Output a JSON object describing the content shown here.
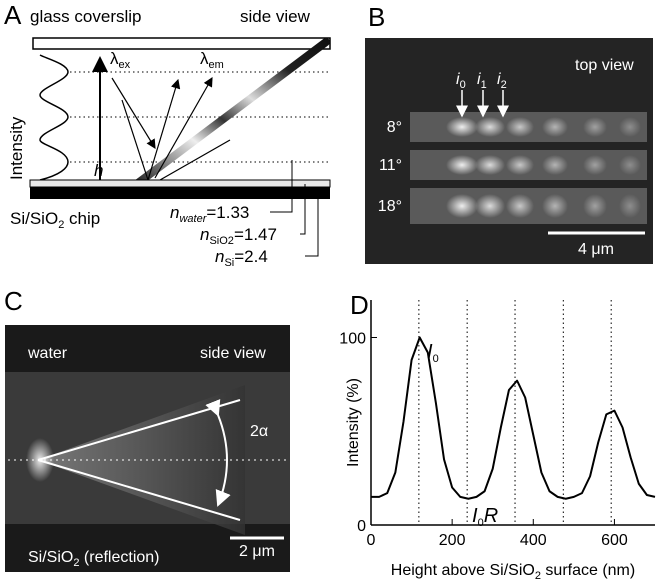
{
  "panel_a": {
    "label": "A",
    "coverslip": "glass coverslip",
    "view": "side view",
    "lambda_ex": [
      "λ",
      "ex"
    ],
    "lambda_em": [
      "λ",
      "em"
    ],
    "axis": "Intensity",
    "h": "h",
    "chip": [
      "Si/SiO",
      "2",
      " chip"
    ],
    "n_water": [
      "n",
      "water",
      "=1.33"
    ],
    "n_sio2": [
      "n",
      "SiO2",
      "=1.47"
    ],
    "n_si": [
      "n",
      "Si",
      "=2.4"
    ]
  },
  "panel_b": {
    "label": "B",
    "view": "top view",
    "peaks": [
      [
        "i",
        "0"
      ],
      [
        "i",
        "1"
      ],
      [
        "i",
        "2"
      ]
    ],
    "angles": [
      "8°",
      "11°",
      "18°"
    ],
    "scale": "4 μm"
  },
  "panel_c": {
    "label": "C",
    "medium": "water",
    "view": "side view",
    "angle": "2α",
    "scale": "2 μm",
    "substrate": [
      "Si/SiO",
      "2",
      " (reflection)"
    ]
  },
  "chart_data": {
    "type": "line",
    "panel_label": "D",
    "x": [
      0,
      20,
      40,
      60,
      80,
      100,
      120,
      140,
      160,
      180,
      200,
      220,
      240,
      260,
      280,
      300,
      320,
      340,
      360,
      380,
      400,
      420,
      440,
      460,
      480,
      500,
      520,
      540,
      560,
      580,
      600,
      620,
      640,
      660,
      680,
      700
    ],
    "series": [
      {
        "color": "#000000",
        "values": [
          15,
          15,
          17,
          28,
          55,
          88,
          100,
          92,
          65,
          35,
          20,
          15,
          14,
          15,
          18,
          30,
          52,
          72,
          77,
          68,
          48,
          28,
          18,
          15,
          14,
          15,
          17,
          26,
          44,
          59,
          61,
          52,
          36,
          22,
          16,
          15
        ]
      }
    ],
    "xlim": [
      0,
      700
    ],
    "xticks": [
      0,
      200,
      400,
      600
    ],
    "ylim": [
      0,
      120
    ],
    "yticks": [
      0,
      100
    ],
    "vlines": [
      118,
      237,
      355,
      474,
      592
    ],
    "annotations": [
      [
        "I",
        "0"
      ],
      [
        "I",
        "0",
        "R"
      ]
    ],
    "xlabel": [
      "Height above Si/SiO",
      "2",
      " surface (nm)"
    ],
    "ylabel": "Intensity (%)"
  }
}
